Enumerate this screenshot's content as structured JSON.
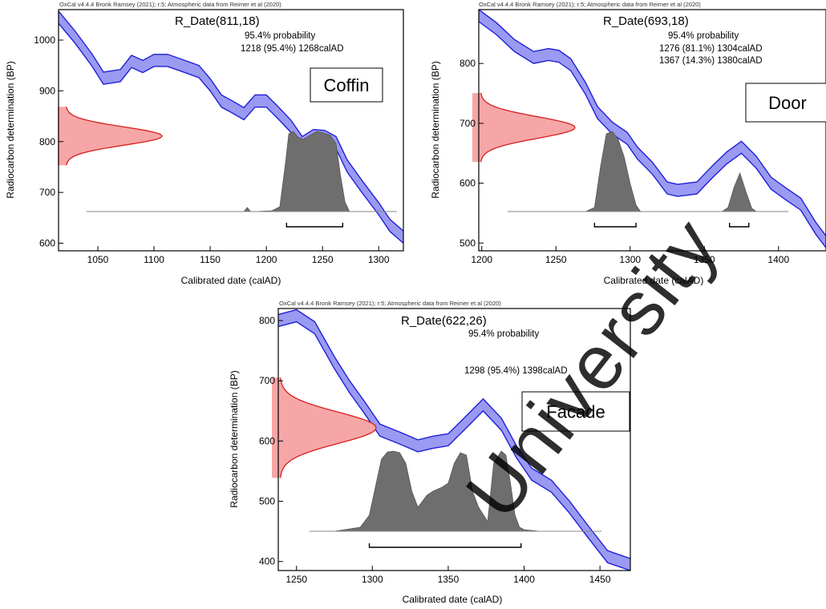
{
  "chart_data": [
    {
      "type": "area",
      "credit": "OxCal v4.4.4 Bronk Ramsey (2021); r:5; Atmospheric data from Reimer et al (2020)",
      "title": "R_Date(811,18)",
      "probability_label": "95.4% probability",
      "ranges": [
        "1218 (95.4%) 1268calAD"
      ],
      "label_box": "Coffin",
      "xlabel": "Calibrated date (calAD)",
      "ylabel": "Radiocarbon determination (BP)",
      "xlim": [
        1015,
        1322
      ],
      "ylim": [
        585,
        1060
      ],
      "xticks": [
        1050,
        1100,
        1150,
        1200,
        1250,
        1300
      ],
      "yticks": [
        600,
        700,
        800,
        900,
        1000
      ],
      "measured": {
        "mean": 811,
        "sd": 18
      },
      "calibration_curve": {
        "x": [
          1015,
          1030,
          1045,
          1055,
          1070,
          1080,
          1090,
          1100,
          1112,
          1125,
          1140,
          1150,
          1160,
          1170,
          1180,
          1190,
          1200,
          1210,
          1222,
          1232,
          1242,
          1252,
          1262,
          1272,
          1285,
          1300,
          1310,
          1322
        ],
        "y": [
          1045,
          1005,
          960,
          925,
          930,
          958,
          948,
          960,
          960,
          950,
          938,
          912,
          880,
          868,
          855,
          880,
          880,
          858,
          830,
          798,
          812,
          810,
          798,
          752,
          712,
          668,
          635,
          612
        ],
        "halfwidth": 12
      },
      "posterior": {
        "x": [
          1180,
          1183,
          1186,
          1190,
          1205,
          1212,
          1217,
          1220,
          1224,
          1228,
          1233,
          1240,
          1245,
          1249,
          1253,
          1257,
          1262,
          1266,
          1270,
          1274
        ],
        "p": [
          0,
          0.05,
          0,
          0,
          0.01,
          0.06,
          0.6,
          0.97,
          1.0,
          0.93,
          0.9,
          0.96,
          1.0,
          0.99,
          0.97,
          0.95,
          0.85,
          0.45,
          0.12,
          0
        ]
      },
      "bracket": [
        1218,
        1268
      ]
    },
    {
      "type": "area",
      "credit": "OxCal v4.4.4 Bronk Ramsey (2021); r:5; Atmospheric data from Reimer et al (2020)",
      "title": "R_Date(693,18)",
      "probability_label": "95.4% probability",
      "ranges": [
        "1276 (81.1%) 1304calAD",
        "1367 (14.3%) 1380calAD"
      ],
      "label_box": "Door",
      "xlabel": "Calibrated date (calAD)",
      "ylabel": "Radiocarbon determination (BP)",
      "xlim": [
        1198,
        1432
      ],
      "ylim": [
        487,
        890
      ],
      "xticks": [
        1200,
        1250,
        1300,
        1350,
        1400
      ],
      "yticks": [
        500,
        600,
        700,
        800
      ],
      "measured": {
        "mean": 693,
        "sd": 18
      },
      "calibration_curve": {
        "x": [
          1198,
          1210,
          1222,
          1235,
          1245,
          1252,
          1260,
          1270,
          1278,
          1288,
          1298,
          1305,
          1315,
          1325,
          1332,
          1345,
          1355,
          1365,
          1375,
          1385,
          1395,
          1405,
          1415,
          1425,
          1432
        ],
        "y": [
          880,
          858,
          830,
          810,
          815,
          812,
          798,
          758,
          718,
          692,
          675,
          650,
          625,
          592,
          588,
          592,
          618,
          642,
          660,
          635,
          600,
          582,
          565,
          525,
          502
        ],
        "halfwidth": 10
      },
      "posterior": {
        "x": [
          1270,
          1276,
          1280,
          1284,
          1288,
          1292,
          1296,
          1300,
          1304,
          1307,
          1362,
          1366,
          1370,
          1374,
          1378,
          1382,
          1385
        ],
        "p": [
          0,
          0.05,
          0.55,
          0.97,
          1.0,
          0.9,
          0.68,
          0.35,
          0.08,
          0,
          0,
          0.05,
          0.3,
          0.48,
          0.25,
          0.04,
          0
        ]
      },
      "bracket": [
        1276,
        1304
      ],
      "bracket2": [
        1367,
        1380
      ]
    },
    {
      "type": "area",
      "credit": "OxCal v4.4.4 Bronk Ramsey (2021); r:5; Atmospheric data from Reimer et al (2020)",
      "title": "R_Date(622,26)",
      "probability_label": "95.4% probability",
      "ranges": [
        "1298 (95.4%) 1398calAD"
      ],
      "label_box": "Facade",
      "xlabel": "Calibrated date (calAD)",
      "ylabel": "Radiocarbon determination (BP)",
      "xlim": [
        1238,
        1470
      ],
      "ylim": [
        385,
        820
      ],
      "xticks": [
        1250,
        1300,
        1350,
        1400,
        1450
      ],
      "yticks": [
        400,
        500,
        600,
        700,
        800
      ],
      "measured": {
        "mean": 622,
        "sd": 26
      },
      "calibration_curve": {
        "x": [
          1238,
          1250,
          1262,
          1275,
          1285,
          1295,
          1305,
          1318,
          1330,
          1340,
          1350,
          1362,
          1373,
          1385,
          1395,
          1405,
          1418,
          1430,
          1442,
          1455,
          1470
        ],
        "y": [
          800,
          808,
          788,
          730,
          690,
          655,
          618,
          605,
          592,
          598,
          602,
          632,
          660,
          628,
          582,
          545,
          525,
          490,
          450,
          408,
          395
        ],
        "halfwidth": 10
      },
      "posterior": {
        "x": [
          1275,
          1292,
          1298,
          1302,
          1306,
          1310,
          1314,
          1318,
          1322,
          1326,
          1330,
          1336,
          1340,
          1346,
          1350,
          1354,
          1358,
          1362,
          1366,
          1370,
          1376,
          1380,
          1385,
          1388,
          1391,
          1394,
          1397,
          1400,
          1410
        ],
        "p": [
          0,
          0.05,
          0.2,
          0.55,
          0.9,
          0.99,
          1.0,
          0.98,
          0.85,
          0.5,
          0.3,
          0.45,
          0.5,
          0.55,
          0.6,
          0.85,
          0.98,
          0.95,
          0.5,
          0.3,
          0.12,
          0.85,
          1.0,
          0.95,
          0.6,
          0.2,
          0.05,
          0.02,
          0
        ]
      },
      "bracket": [
        1298,
        1398
      ]
    }
  ],
  "watermark": "University"
}
